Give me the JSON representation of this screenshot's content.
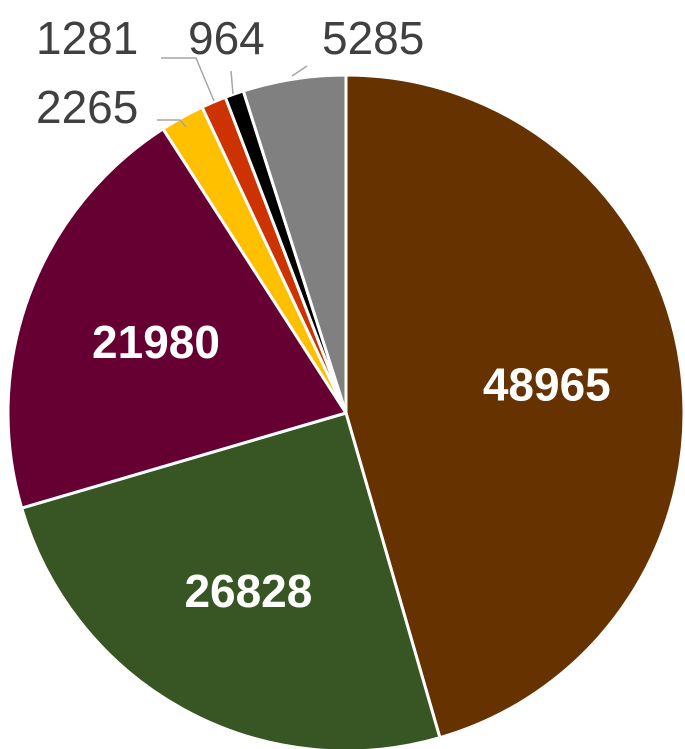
{
  "chart_data": {
    "type": "pie",
    "slices": [
      {
        "label": "48965",
        "value": 48965,
        "color": "#663300",
        "label_style": "inside"
      },
      {
        "label": "26828",
        "value": 26828,
        "color": "#375623",
        "label_style": "inside"
      },
      {
        "label": "21980",
        "value": 21980,
        "color": "#660033",
        "label_style": "inside"
      },
      {
        "label": "2265",
        "value": 2265,
        "color": "#ffc000",
        "label_style": "outside"
      },
      {
        "label": "1281",
        "value": 1281,
        "color": "#cc3300",
        "label_style": "outside"
      },
      {
        "label": "964",
        "value": 964,
        "color": "#000000",
        "label_style": "outside"
      },
      {
        "label": "5285",
        "value": 5285,
        "color": "#808080",
        "label_style": "outside"
      }
    ],
    "start_angle_deg": 0,
    "direction": "clockwise",
    "legend": "none",
    "data_labels": true
  }
}
